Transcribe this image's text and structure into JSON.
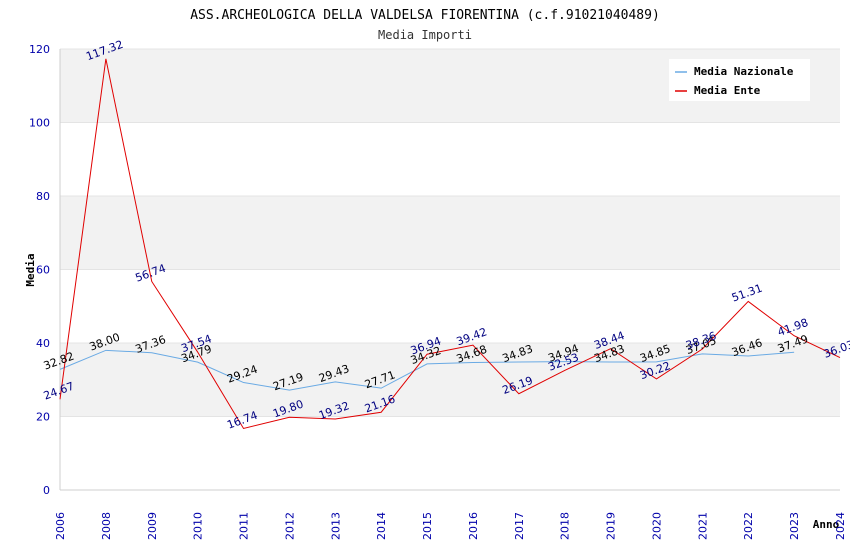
{
  "chart_data": {
    "type": "line",
    "title": "ASS.ARCHEOLOGICA DELLA VALDELSA FIORENTINA (c.f.91021040489)",
    "subtitle": "Media Importi",
    "xlabel": "Anno",
    "ylabel": "Media",
    "ylim": [
      0,
      120
    ],
    "yticks": [
      0,
      20,
      40,
      60,
      80,
      100,
      120
    ],
    "categories": [
      "2006",
      "2008",
      "2009",
      "2010",
      "2011",
      "2012",
      "2013",
      "2014",
      "2015",
      "2016",
      "2017",
      "2018",
      "2019",
      "2020",
      "2021",
      "2022",
      "2023",
      "2024"
    ],
    "series": [
      {
        "name": "Media Nazionale",
        "color": "#6aaae4",
        "values": [
          32.82,
          38.0,
          37.36,
          34.79,
          29.24,
          27.19,
          29.43,
          27.71,
          34.32,
          34.68,
          34.83,
          34.94,
          34.83,
          34.85,
          37.05,
          36.46,
          37.49,
          null
        ],
        "labels": [
          "32.82",
          "38.00",
          "37.36",
          "34.79",
          "29.24",
          "27.19",
          "29.43",
          "27.71",
          "34.32",
          "34.68",
          "34.83",
          "34.94",
          "34.83",
          "34.85",
          "37.05",
          "36.46",
          "37.49",
          ""
        ]
      },
      {
        "name": "Media Ente",
        "color": "#e00000",
        "values": [
          24.67,
          117.32,
          56.74,
          37.54,
          16.74,
          19.8,
          19.32,
          21.16,
          36.94,
          39.42,
          26.19,
          32.53,
          38.44,
          30.22,
          38.36,
          51.31,
          41.98,
          36.03
        ],
        "labels": [
          "24.67",
          "117.32",
          "56.74",
          "37.54",
          "16.74",
          "19.80",
          "19.32",
          "21.16",
          "36.94",
          "39.42",
          "26.19",
          "32.53",
          "38.44",
          "30.22",
          "38.36",
          "51.31",
          "41.98",
          "36.03"
        ]
      }
    ],
    "legend": "top-right",
    "grid": "alternating horizontal bands"
  }
}
